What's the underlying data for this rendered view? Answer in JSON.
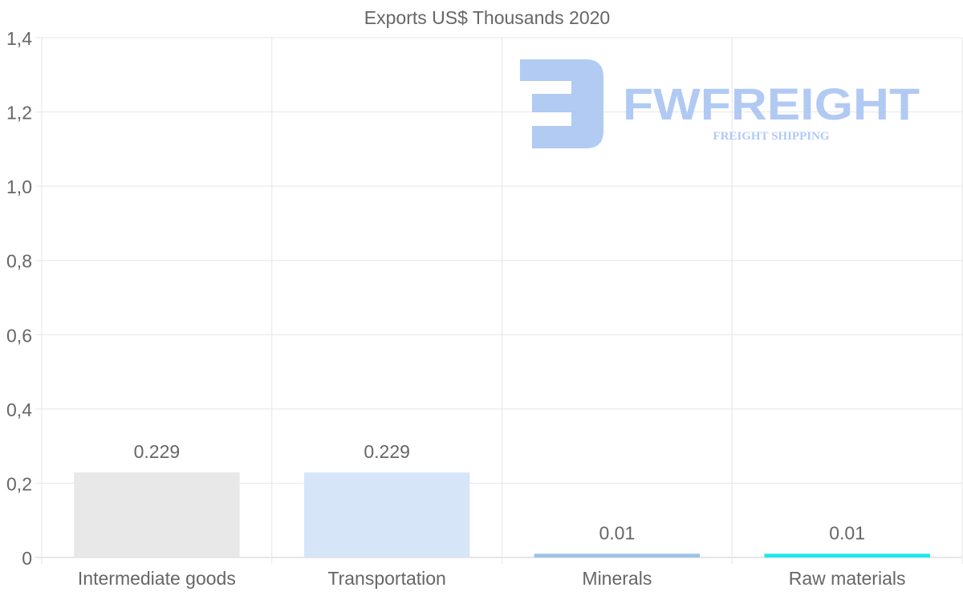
{
  "chart_data": {
    "type": "bar",
    "title": "Exports US$ Thousands 2020",
    "xlabel": "",
    "ylabel": "",
    "categories": [
      "Intermediate goods",
      "Transportation",
      "Minerals",
      "Raw materials"
    ],
    "values": [
      0.229,
      0.229,
      0.01,
      0.01
    ],
    "data_labels": [
      "0.229",
      "0.229",
      "0.01",
      "0.01"
    ],
    "bar_colors": [
      "#e8e8e8",
      "#d6e6f8",
      "#9dc3e6",
      "#1de9ec"
    ],
    "ylim": [
      0,
      1.4
    ],
    "yticks": [
      0,
      0.2,
      0.4,
      0.6,
      0.8,
      1.0,
      1.2,
      1.4
    ],
    "ytick_labels": [
      "0",
      "0,2",
      "0,4",
      "0,6",
      "0,8",
      "1,0",
      "1,2",
      "1,4"
    ],
    "grid": true,
    "legend": "none"
  },
  "watermark": {
    "brand": "FWFREIGHT",
    "tagline": "FREIGHT SHIPPING",
    "color": "#a9c5f2"
  }
}
